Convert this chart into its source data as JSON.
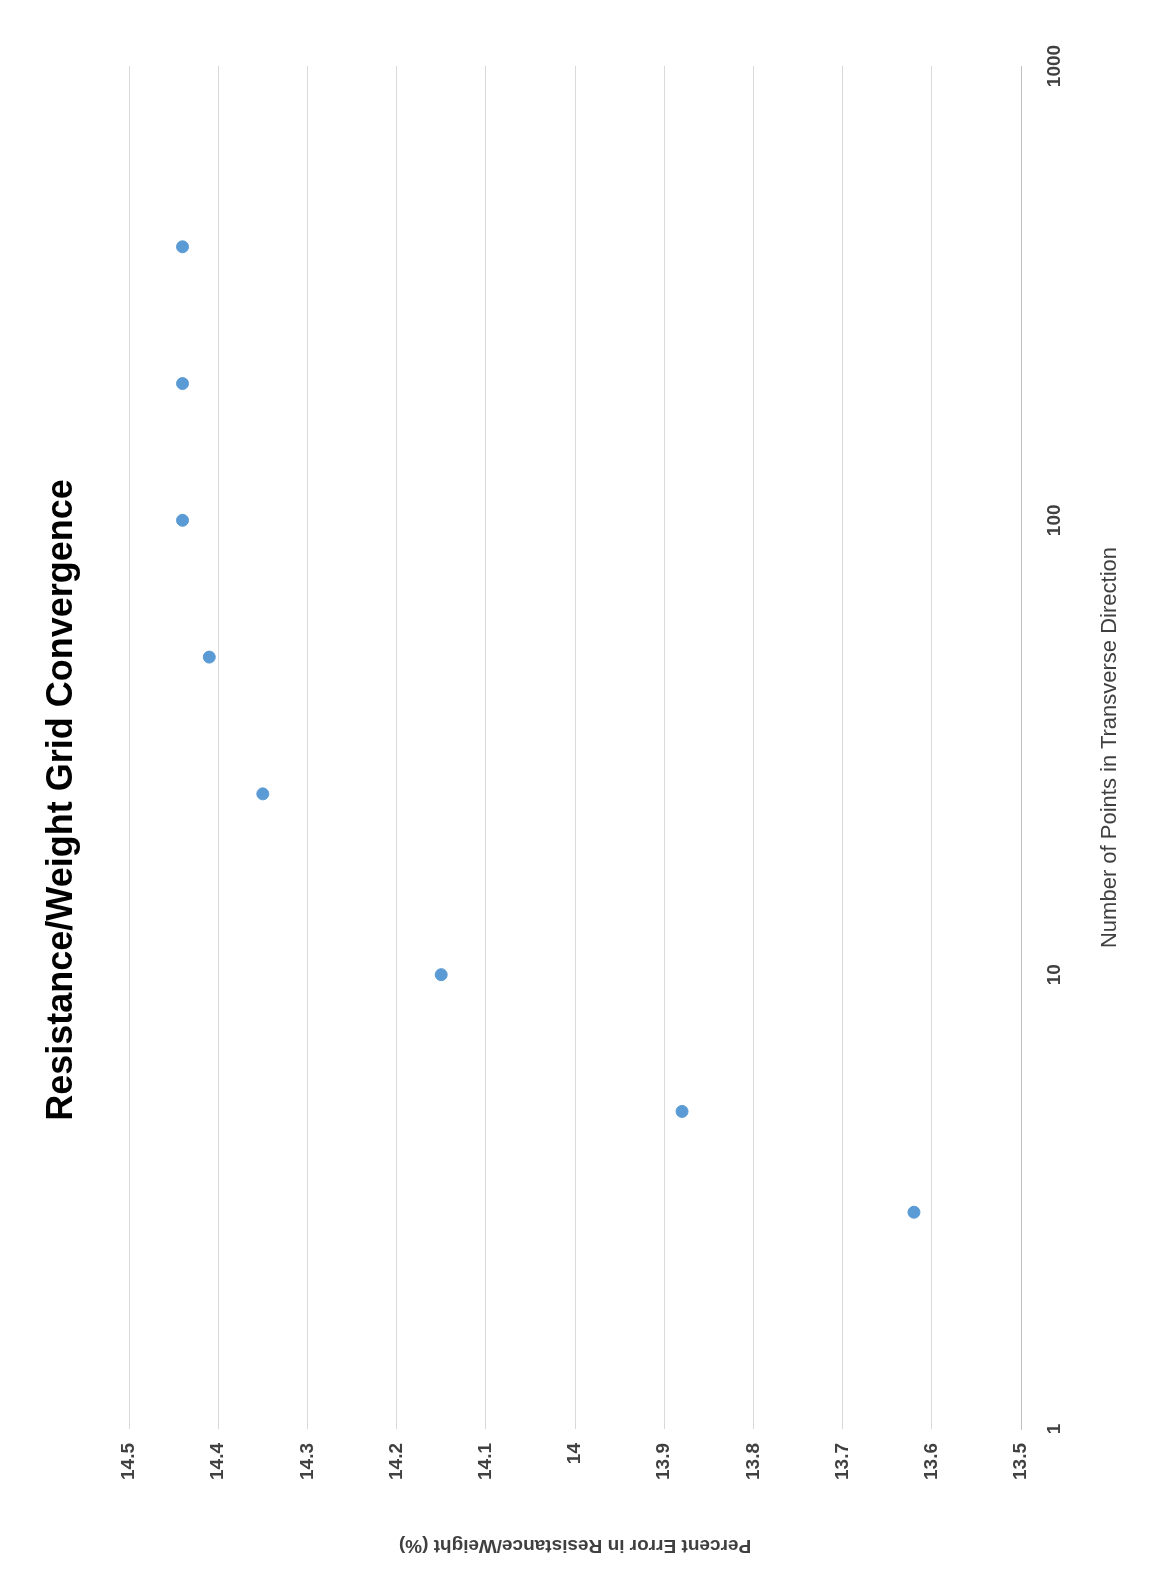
{
  "chart_data": {
    "type": "scatter",
    "title": "Resistance/Weight Grid Convergence",
    "xlabel": "Percent Error in Resistance/Weight (%)",
    "ylabel": "Number of Points in Transverse Direction",
    "series": [
      {
        "color": "#5b9bd5",
        "x": [
          13.62,
          13.88,
          14.15,
          14.35,
          14.41,
          14.44,
          14.44,
          14.44
        ],
        "values": [
          3,
          5,
          10,
          25,
          50,
          100,
          200,
          400
        ]
      }
    ],
    "log": "y",
    "xlim": [
      14.5,
      13.5
    ],
    "xticks": [
      14.5,
      14.4,
      14.3,
      14.2,
      14.1,
      14,
      13.9,
      13.8,
      13.7,
      13.6,
      13.5
    ],
    "ylim": [
      1,
      1000
    ],
    "yticks": [
      1,
      10,
      100,
      1000
    ],
    "grid": "x",
    "marker": "circle"
  }
}
